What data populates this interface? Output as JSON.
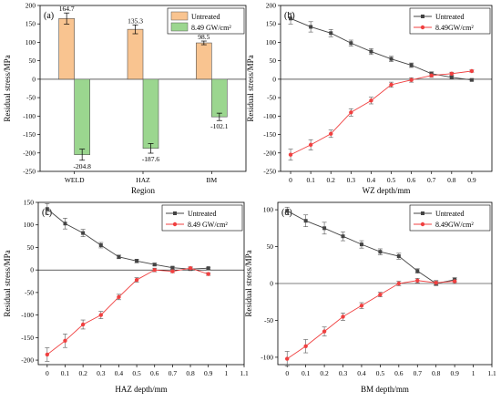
{
  "colors": {
    "untreated_bar": "#f9c490",
    "treated_bar": "#9bd68f",
    "untreated_line": "#444444",
    "treated_line": "#f04040"
  },
  "chart_data": [
    {
      "panel": "(a)",
      "type": "bar",
      "xlabel": "Region",
      "ylabel": "Residual stress/MPa",
      "ylim": [
        -250,
        200
      ],
      "yticks": [
        -250,
        -200,
        -150,
        -100,
        -50,
        0,
        50,
        100,
        150,
        200
      ],
      "categories": [
        "WELD",
        "HAZ",
        "BM"
      ],
      "series": [
        {
          "name": "Untreated",
          "values": [
            164.7,
            135.3,
            98.5
          ],
          "errors": [
            15,
            12,
            5
          ],
          "labels": [
            "164.7",
            "135.3",
            "98.5"
          ]
        },
        {
          "name": "8.49 GW/cm²",
          "values": [
            -204.8,
            -187.6,
            -102.1
          ],
          "errors": [
            15,
            13,
            10
          ],
          "labels": [
            "-204.8",
            "-187.6",
            "-102.1"
          ]
        }
      ],
      "legend": "top-right"
    },
    {
      "panel": "(b)",
      "type": "line",
      "xlabel": "WZ depth/mm",
      "ylabel": "Residual stress/MPa",
      "xlim": [
        -0.05,
        1.0
      ],
      "xticks": [
        0.0,
        0.1,
        0.2,
        0.3,
        0.4,
        0.5,
        0.6,
        0.7,
        0.8,
        0.9
      ],
      "ylim": [
        -250,
        200
      ],
      "yticks": [
        -250,
        -200,
        -150,
        -100,
        -50,
        0,
        50,
        100,
        150,
        200
      ],
      "x": [
        0.0,
        0.1,
        0.2,
        0.3,
        0.4,
        0.5,
        0.6,
        0.7,
        0.8,
        0.9
      ],
      "series": [
        {
          "name": "Untreated",
          "values": [
            164.7,
            142,
            125,
            98,
            75,
            55,
            38,
            15,
            5,
            -2
          ],
          "errors": [
            15,
            14,
            10,
            8,
            8,
            7,
            6,
            5,
            4,
            3
          ]
        },
        {
          "name": "8.49GW/cm²",
          "values": [
            -204.8,
            -178,
            -148,
            -90,
            -58,
            -15,
            -2,
            10,
            15,
            22
          ],
          "errors": [
            15,
            14,
            10,
            10,
            9,
            7,
            6,
            5,
            4,
            3
          ]
        }
      ],
      "legend": "top-right"
    },
    {
      "panel": "(c)",
      "type": "line",
      "xlabel": "HAZ depth/mm",
      "ylabel": "Residual stress/MPa",
      "xlim": [
        -0.05,
        1.1
      ],
      "xticks": [
        0.0,
        0.1,
        0.2,
        0.3,
        0.4,
        0.5,
        0.6,
        0.7,
        0.8,
        0.9,
        1.0,
        1.1
      ],
      "ylim": [
        -210,
        150
      ],
      "yticks": [
        -200,
        -150,
        -100,
        -50,
        0,
        50,
        100,
        150
      ],
      "x": [
        0.0,
        0.1,
        0.2,
        0.3,
        0.4,
        0.5,
        0.6,
        0.7,
        0.8,
        0.9
      ],
      "series": [
        {
          "name": "Untreated",
          "values": [
            135.3,
            103,
            82,
            55,
            29,
            20,
            12,
            5,
            2,
            4
          ],
          "errors": [
            12,
            12,
            8,
            6,
            4,
            4,
            3,
            3,
            3,
            2
          ]
        },
        {
          "name": "8.49 GW/cm²",
          "values": [
            -187.6,
            -157,
            -121,
            -100,
            -60,
            -22,
            0,
            -3,
            4,
            -9
          ],
          "errors": [
            15,
            15,
            10,
            8,
            6,
            5,
            4,
            3,
            3,
            3
          ]
        }
      ],
      "legend": "top-right"
    },
    {
      "panel": "(d)",
      "type": "line",
      "xlabel": "BM depth/mm",
      "ylabel": "Residual stress/MPa",
      "xlim": [
        -0.05,
        1.1
      ],
      "xticks": [
        0.0,
        0.1,
        0.2,
        0.3,
        0.4,
        0.5,
        0.6,
        0.7,
        0.8,
        0.9,
        1.0,
        1.1
      ],
      "ylim": [
        -110,
        110
      ],
      "yticks": [
        -100,
        -50,
        0,
        50,
        100
      ],
      "x": [
        0.0,
        0.1,
        0.2,
        0.3,
        0.4,
        0.5,
        0.6,
        0.7,
        0.8,
        0.9
      ],
      "series": [
        {
          "name": "Untreated",
          "values": [
            98.5,
            85,
            75,
            64,
            53,
            43,
            37,
            17,
            0,
            5
          ],
          "errors": [
            5,
            8,
            8,
            6,
            5,
            4,
            4,
            3,
            3,
            3
          ]
        },
        {
          "name": "8.49GW/cm²",
          "values": [
            -102.1,
            -85,
            -65,
            -45,
            -30,
            -15,
            0,
            4,
            1,
            3
          ],
          "errors": [
            10,
            9,
            6,
            5,
            4,
            3,
            3,
            3,
            3,
            3
          ]
        }
      ],
      "legend": "top-right"
    }
  ]
}
